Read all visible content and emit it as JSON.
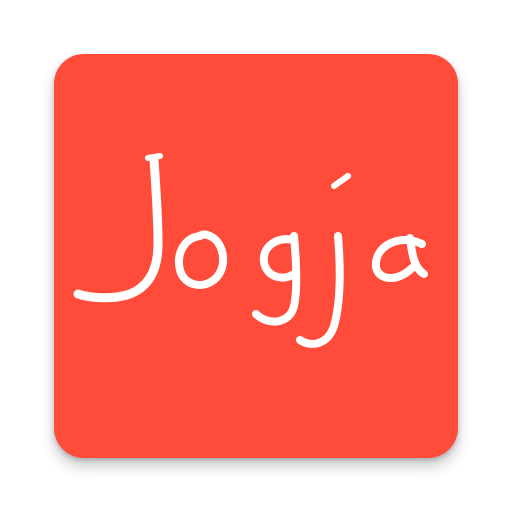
{
  "icon": {
    "wordmark": "Jogja",
    "background_color": "#FF4B3A",
    "text_color": "#FFFFFF"
  }
}
